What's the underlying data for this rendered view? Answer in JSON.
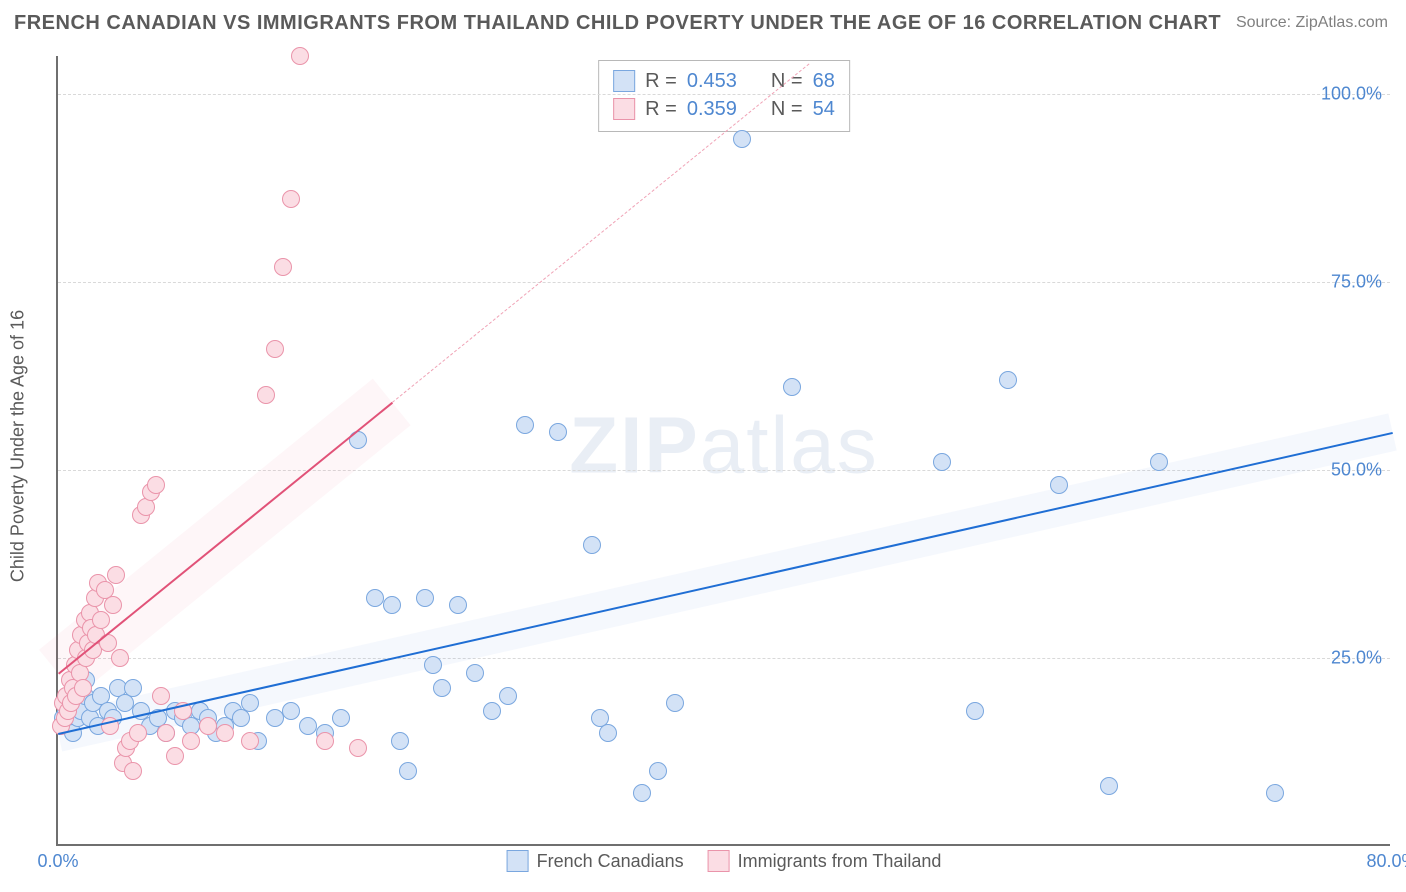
{
  "title": "FRENCH CANADIAN VS IMMIGRANTS FROM THAILAND CHILD POVERTY UNDER THE AGE OF 16 CORRELATION CHART",
  "source": "Source: ZipAtlas.com",
  "ylabel": "Child Poverty Under the Age of 16",
  "watermark_a": "ZIP",
  "watermark_b": "atlas",
  "chart": {
    "type": "scatter",
    "xlim": [
      0,
      80
    ],
    "ylim": [
      0,
      105
    ],
    "xtick_min": {
      "val": 0,
      "label": "0.0%"
    },
    "xtick_max": {
      "val": 80,
      "label": "80.0%"
    },
    "yticks": [
      {
        "val": 25,
        "label": "25.0%"
      },
      {
        "val": 50,
        "label": "50.0%"
      },
      {
        "val": 75,
        "label": "75.0%"
      },
      {
        "val": 100,
        "label": "100.0%"
      }
    ],
    "grid_color": "#d9d9d9",
    "background_color": "#ffffff",
    "marker_radius": 9,
    "marker_border_width": 1.6,
    "series": [
      {
        "key": "sA",
        "label": "French Canadians",
        "fill": "#d3e2f6",
        "stroke": "#7aa7df",
        "R": "0.453",
        "N": "68",
        "trend": {
          "x1": 0,
          "y1": 15,
          "x2": 80,
          "y2": 55,
          "color": "#1f6ed4",
          "width": 2.4,
          "dash": false
        },
        "band_fill": "rgba(120,160,220,0.07)",
        "band_half": 2.5,
        "points": [
          [
            0.3,
            17
          ],
          [
            0.5,
            18
          ],
          [
            0.7,
            20
          ],
          [
            0.9,
            15
          ],
          [
            1.0,
            19
          ],
          [
            1.2,
            17
          ],
          [
            1.3,
            21
          ],
          [
            1.4,
            18
          ],
          [
            1.6,
            20
          ],
          [
            1.7,
            22
          ],
          [
            1.9,
            17
          ],
          [
            2.1,
            19
          ],
          [
            2.4,
            16
          ],
          [
            2.6,
            20
          ],
          [
            3.0,
            18
          ],
          [
            3.3,
            17
          ],
          [
            3.6,
            21
          ],
          [
            4.0,
            19
          ],
          [
            4.5,
            21
          ],
          [
            5.0,
            18
          ],
          [
            5.5,
            16
          ],
          [
            6.0,
            17
          ],
          [
            6.5,
            15
          ],
          [
            7.0,
            18
          ],
          [
            7.5,
            17
          ],
          [
            8.0,
            16
          ],
          [
            8.5,
            18
          ],
          [
            9.0,
            17
          ],
          [
            9.5,
            15
          ],
          [
            10.0,
            16
          ],
          [
            10.5,
            18
          ],
          [
            11.0,
            17
          ],
          [
            11.5,
            19
          ],
          [
            12.0,
            14
          ],
          [
            13.0,
            17
          ],
          [
            14.0,
            18
          ],
          [
            15.0,
            16
          ],
          [
            16.0,
            15
          ],
          [
            17.0,
            17
          ],
          [
            18.0,
            54
          ],
          [
            19.0,
            33
          ],
          [
            20.0,
            32
          ],
          [
            20.5,
            14
          ],
          [
            21.0,
            10
          ],
          [
            22.0,
            33
          ],
          [
            22.5,
            24
          ],
          [
            23.0,
            21
          ],
          [
            24.0,
            32
          ],
          [
            25.0,
            23
          ],
          [
            26.0,
            18
          ],
          [
            27.0,
            20
          ],
          [
            28.0,
            56
          ],
          [
            30.0,
            55
          ],
          [
            32.0,
            40
          ],
          [
            32.5,
            17
          ],
          [
            33.0,
            15
          ],
          [
            35.0,
            7
          ],
          [
            36.0,
            10
          ],
          [
            37.0,
            19
          ],
          [
            41.0,
            94
          ],
          [
            44.0,
            61
          ],
          [
            53.0,
            51
          ],
          [
            55.0,
            18
          ],
          [
            57.0,
            62
          ],
          [
            60.0,
            48
          ],
          [
            63.0,
            8
          ],
          [
            66.0,
            51
          ],
          [
            73.0,
            7
          ]
        ]
      },
      {
        "key": "sB",
        "label": "Immigrants from Thailand",
        "fill": "#fbdde4",
        "stroke": "#ea94aa",
        "R": "0.359",
        "N": "54",
        "trend": {
          "x1": 0,
          "y1": 23,
          "x2": 20,
          "y2": 59,
          "color": "#e15278",
          "width": 2.2,
          "dash": false
        },
        "trend_ext": {
          "x1": 20,
          "y1": 59,
          "x2": 45,
          "y2": 104,
          "color": "#f0a3b6",
          "width": 1.6,
          "dash": true
        },
        "band_fill": "rgba(235,110,140,0.06)",
        "band_half": 4,
        "points": [
          [
            0.2,
            16
          ],
          [
            0.3,
            19
          ],
          [
            0.4,
            17
          ],
          [
            0.5,
            20
          ],
          [
            0.6,
            18
          ],
          [
            0.7,
            22
          ],
          [
            0.8,
            19
          ],
          [
            0.9,
            21
          ],
          [
            1.0,
            24
          ],
          [
            1.1,
            20
          ],
          [
            1.2,
            26
          ],
          [
            1.3,
            23
          ],
          [
            1.4,
            28
          ],
          [
            1.5,
            21
          ],
          [
            1.6,
            30
          ],
          [
            1.7,
            25
          ],
          [
            1.8,
            27
          ],
          [
            1.9,
            31
          ],
          [
            2.0,
            29
          ],
          [
            2.1,
            26
          ],
          [
            2.2,
            33
          ],
          [
            2.3,
            28
          ],
          [
            2.4,
            35
          ],
          [
            2.6,
            30
          ],
          [
            2.8,
            34
          ],
          [
            3.0,
            27
          ],
          [
            3.1,
            16
          ],
          [
            3.3,
            32
          ],
          [
            3.5,
            36
          ],
          [
            3.7,
            25
          ],
          [
            3.9,
            11
          ],
          [
            4.1,
            13
          ],
          [
            4.3,
            14
          ],
          [
            4.5,
            10
          ],
          [
            4.8,
            15
          ],
          [
            5.0,
            44
          ],
          [
            5.3,
            45
          ],
          [
            5.6,
            47
          ],
          [
            5.9,
            48
          ],
          [
            6.2,
            20
          ],
          [
            6.5,
            15
          ],
          [
            7.0,
            12
          ],
          [
            7.5,
            18
          ],
          [
            8.0,
            14
          ],
          [
            9.0,
            16
          ],
          [
            10.0,
            15
          ],
          [
            11.5,
            14
          ],
          [
            12.5,
            60
          ],
          [
            13.0,
            66
          ],
          [
            13.5,
            77
          ],
          [
            14.0,
            86
          ],
          [
            14.5,
            105
          ],
          [
            16.0,
            14
          ],
          [
            18.0,
            13
          ]
        ]
      }
    ]
  },
  "stats_prefix_R": "R =",
  "stats_prefix_N": "N ="
}
